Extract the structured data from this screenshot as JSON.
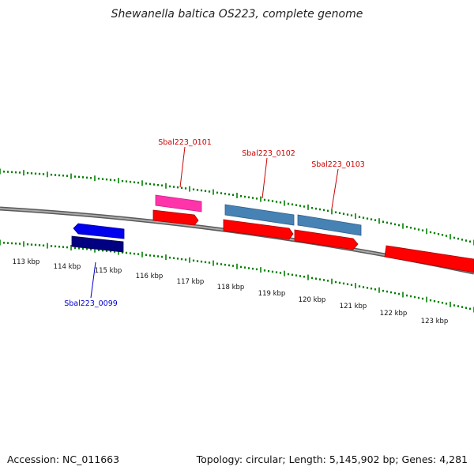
{
  "title": "Shewanella baltica OS223, complete genome",
  "footer": {
    "accession": "Accession: NC_011663",
    "summary": "Topology: circular; Length: 5,145,902 bp; Genes: 4,281"
  },
  "ticks": [
    "113 kbp",
    "114 kbp",
    "115 kbp",
    "116 kbp",
    "117 kbp",
    "118 kbp",
    "119 kbp",
    "120 kbp",
    "121 kbp",
    "122 kbp",
    "123 kbp"
  ],
  "genes": {
    "g0099": "Sbal223_0099",
    "g0101": "Sbal223_0101",
    "g0102": "Sbal223_0102",
    "g0103": "Sbal223_0103"
  },
  "colors": {
    "cds": "#ff0000",
    "cds_reverse": "#0000ee",
    "feature_pink": "#ff33aa",
    "feature_steel": "#4682b4",
    "feature_navy": "#000080",
    "backbone": "#888888",
    "tick": "#008000",
    "label_red": "#cc0000",
    "label_blue": "#0000cc"
  }
}
